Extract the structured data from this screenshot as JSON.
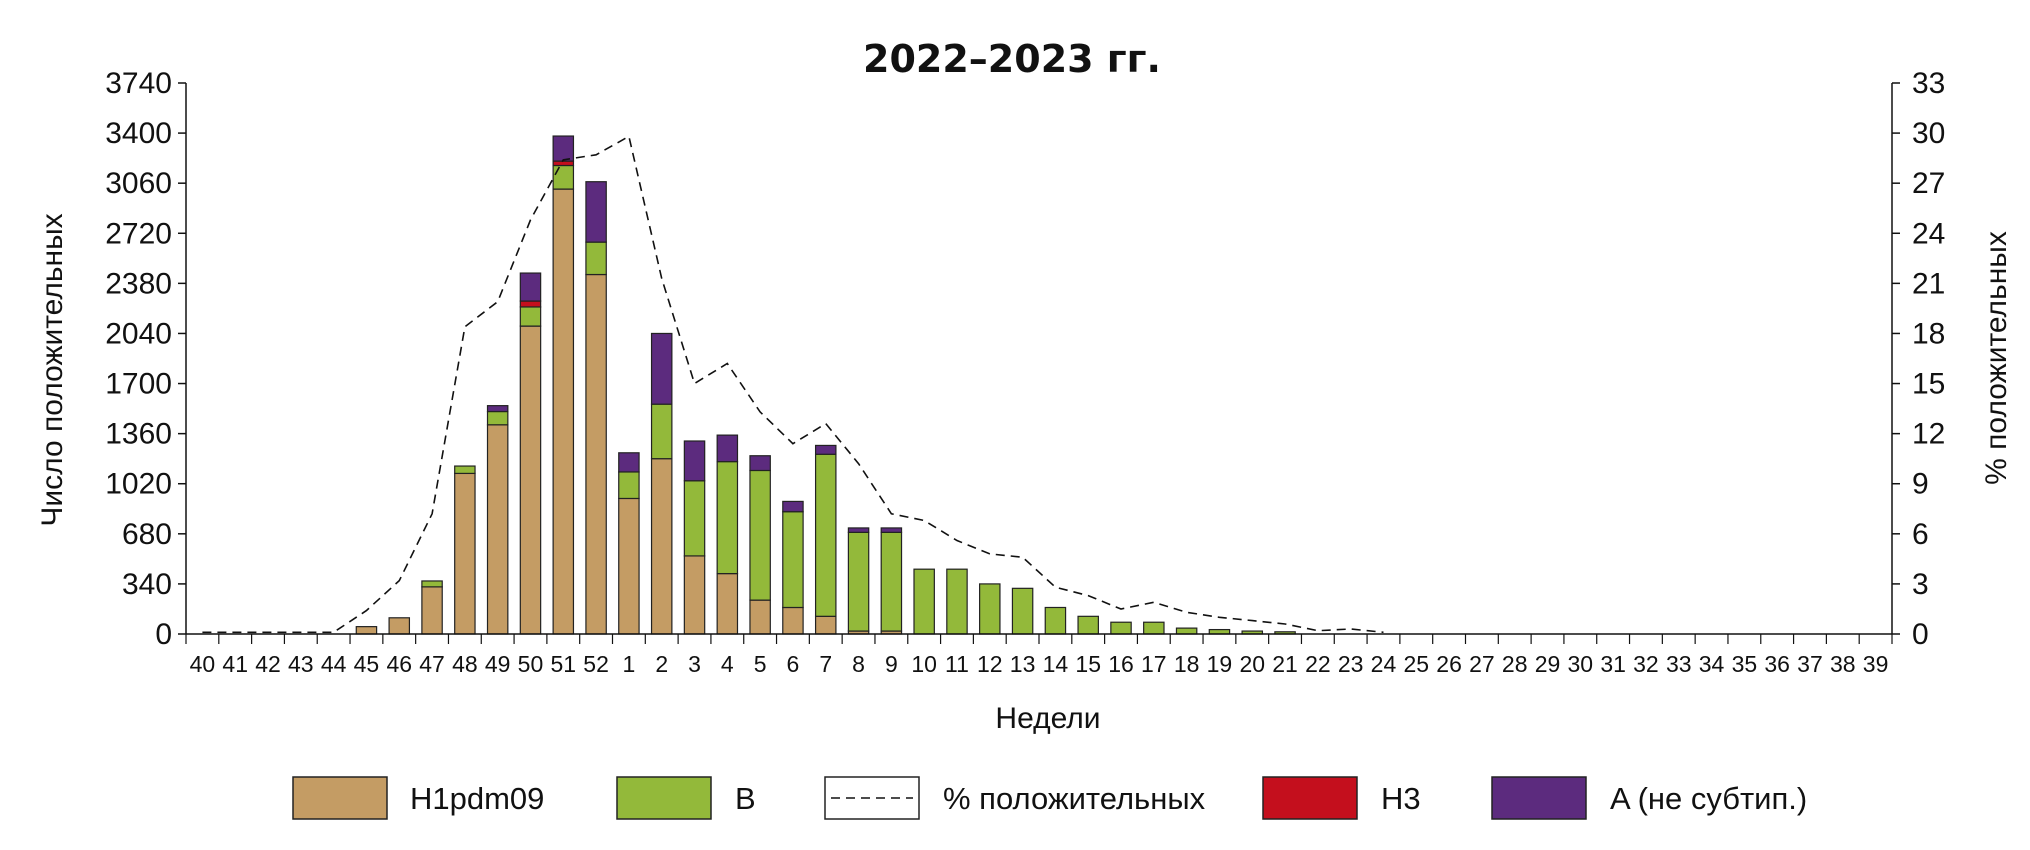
{
  "chart_data": {
    "type": "bar",
    "stacked": true,
    "title": "2022–2023 гг.",
    "xlabel": "Недели",
    "ylabel": "Число положительных",
    "y2label": "% положительных",
    "ylim": [
      0,
      3740
    ],
    "y2lim": [
      0,
      33
    ],
    "yticks": [
      "0",
      "340",
      "680",
      "1020",
      "1360",
      "1700",
      "2040",
      "2380",
      "2720",
      "3060",
      "3400",
      "3740"
    ],
    "y2ticks": [
      "0",
      "3",
      "6",
      "9",
      "12",
      "15",
      "18",
      "21",
      "24",
      "27",
      "30",
      "33"
    ],
    "categories": [
      "40",
      "41",
      "42",
      "43",
      "44",
      "45",
      "46",
      "47",
      "48",
      "49",
      "50",
      "51",
      "52",
      "1",
      "2",
      "3",
      "4",
      "5",
      "6",
      "7",
      "8",
      "9",
      "10",
      "11",
      "12",
      "13",
      "14",
      "15",
      "16",
      "17",
      "18",
      "19",
      "20",
      "21",
      "22",
      "23",
      "24",
      "25",
      "26",
      "27",
      "28",
      "29",
      "30",
      "31",
      "32",
      "33",
      "34",
      "35",
      "36",
      "37",
      "38",
      "39"
    ],
    "series": [
      {
        "name": "H1pdm09",
        "color": "#c49c64",
        "values": [
          0,
          0,
          0,
          0,
          0,
          50,
          110,
          320,
          1090,
          1420,
          2090,
          3020,
          2440,
          920,
          1190,
          530,
          410,
          230,
          180,
          120,
          20,
          20,
          0,
          0,
          0,
          0,
          0,
          0,
          0,
          0,
          0,
          0,
          0,
          0,
          0,
          0,
          0,
          0,
          0,
          0,
          0,
          0,
          0,
          0,
          0,
          0,
          0,
          0,
          0,
          0,
          0,
          0
        ]
      },
      {
        "name": "B",
        "color": "#93b93a",
        "values": [
          0,
          0,
          0,
          0,
          0,
          0,
          0,
          40,
          50,
          90,
          130,
          160,
          220,
          180,
          370,
          510,
          760,
          880,
          650,
          1100,
          670,
          670,
          440,
          440,
          340,
          310,
          180,
          120,
          80,
          80,
          40,
          30,
          20,
          15,
          0,
          0,
          0,
          0,
          0,
          0,
          0,
          0,
          0,
          0,
          0,
          0,
          0,
          0,
          0,
          0,
          0,
          0
        ]
      },
      {
        "name": "H3",
        "color": "#c40f1d",
        "values": [
          0,
          0,
          0,
          0,
          0,
          0,
          0,
          0,
          0,
          0,
          40,
          30,
          0,
          0,
          0,
          0,
          0,
          0,
          0,
          0,
          0,
          0,
          0,
          0,
          0,
          0,
          0,
          0,
          0,
          0,
          0,
          0,
          0,
          0,
          0,
          0,
          0,
          0,
          0,
          0,
          0,
          0,
          0,
          0,
          0,
          0,
          0,
          0,
          0,
          0,
          0,
          0
        ]
      },
      {
        "name": "A (не субтип.)",
        "color": "#5c2b7e",
        "values": [
          0,
          0,
          0,
          0,
          0,
          0,
          0,
          0,
          0,
          40,
          190,
          170,
          410,
          130,
          480,
          270,
          180,
          100,
          70,
          60,
          30,
          30,
          0,
          0,
          0,
          0,
          0,
          0,
          0,
          0,
          0,
          0,
          0,
          0,
          0,
          0,
          0,
          0,
          0,
          0,
          0,
          0,
          0,
          0,
          0,
          0,
          0,
          0,
          0,
          0,
          0,
          0
        ]
      },
      {
        "name": "% положительных",
        "type": "line",
        "style": "dashed",
        "axis": "right",
        "values": [
          0.1,
          0.1,
          0.1,
          0.1,
          0.1,
          1.4,
          3.2,
          7.2,
          18.4,
          19.9,
          24.8,
          28.4,
          28.7,
          29.8,
          21.3,
          15.0,
          16.2,
          13.3,
          11.4,
          12.6,
          10.2,
          7.2,
          6.8,
          5.6,
          4.8,
          4.6,
          2.8,
          2.3,
          1.5,
          1.9,
          1.3,
          1.0,
          0.8,
          0.6,
          0.2,
          0.3,
          0.1,
          0,
          0,
          0,
          0,
          0,
          0,
          0,
          0,
          0,
          0,
          0,
          0,
          0,
          0,
          0
        ]
      }
    ],
    "legend": {
      "position": "bottom",
      "items": [
        "H1pdm09",
        "B",
        "% положительных",
        "H3",
        "A (не субтип.)"
      ]
    },
    "grid": false
  }
}
